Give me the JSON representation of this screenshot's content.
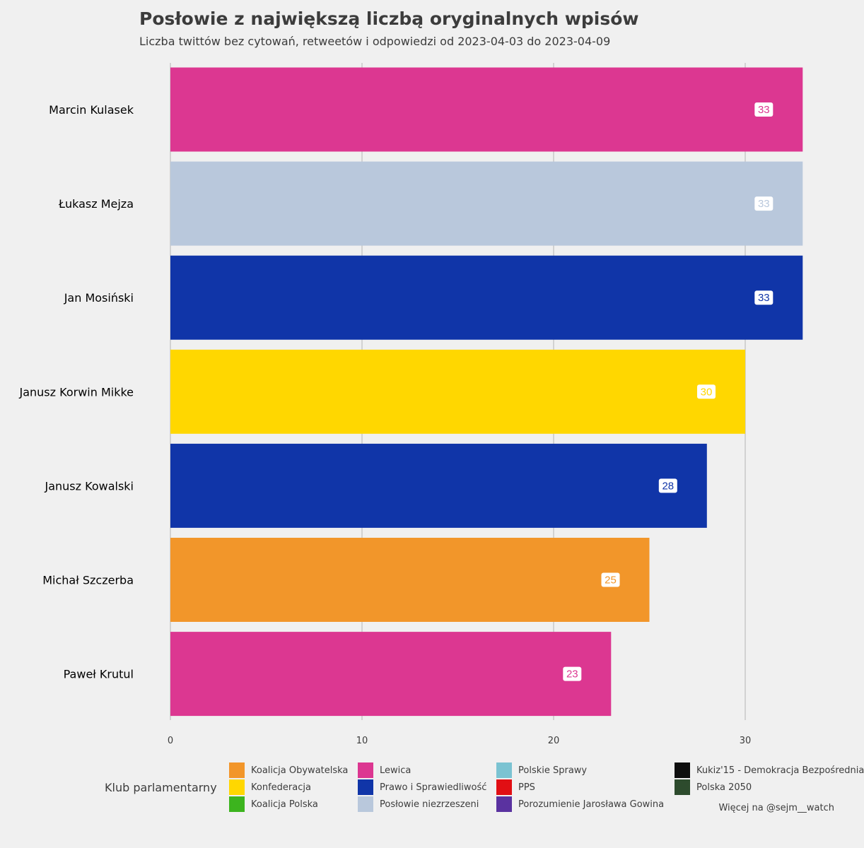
{
  "header": {
    "title": "Posłowie z największą liczbą oryginalnych wpisów",
    "subtitle": "Liczba twittów bez cytowań, retweetów i odpowiedzi od 2023-04-03 do 2023-04-09"
  },
  "chart_data": {
    "type": "bar",
    "orientation": "horizontal",
    "categories": [
      "Marcin Kulasek",
      "Łukasz Mejza",
      "Jan Mosiński",
      "Janusz Korwin Mikke",
      "Janusz Kowalski",
      "Michał Szczerba",
      "Paweł Krutul"
    ],
    "values": [
      33,
      33,
      33,
      30,
      28,
      25,
      23
    ],
    "data_labels": [
      "33",
      "33",
      "33",
      "30",
      "28",
      "25",
      "23"
    ],
    "bar_colors": [
      "#dc3791",
      "#b9c8dc",
      "#1035a8",
      "#ffd700",
      "#1035a8",
      "#f2962a",
      "#dc3791"
    ],
    "xlim": [
      0,
      33
    ],
    "xticks": [
      0,
      10,
      20,
      30
    ],
    "tick_labels": [
      "0",
      "10",
      "20",
      "30"
    ],
    "grid": "vertical",
    "legend_position": "bottom"
  },
  "legend": {
    "title": "Klub parlamentarny",
    "items": [
      {
        "label": "Koalicja Obywatelska",
        "color": "#f2962a"
      },
      {
        "label": "Konfederacja",
        "color": "#ffd700"
      },
      {
        "label": "Koalicja Polska",
        "color": "#3cb41e"
      },
      {
        "label": "Lewica",
        "color": "#dc3791"
      },
      {
        "label": "Prawo i Sprawiedliwość",
        "color": "#1035a8"
      },
      {
        "label": "Posłowie niezrzeszeni",
        "color": "#b9c8dc"
      },
      {
        "label": "Polskie Sprawy",
        "color": "#7bc3d2"
      },
      {
        "label": "PPS",
        "color": "#e10f14"
      },
      {
        "label": "Porozumienie Jarosława Gowina",
        "color": "#5a32a0"
      },
      {
        "label": "Kukiz'15 - Demokracja Bezpośrednia",
        "color": "#0f0f0f"
      },
      {
        "label": "Polska 2050",
        "color": "#2d4b2d"
      }
    ]
  },
  "footer": {
    "caption": "Więcej na @sejm__watch"
  }
}
